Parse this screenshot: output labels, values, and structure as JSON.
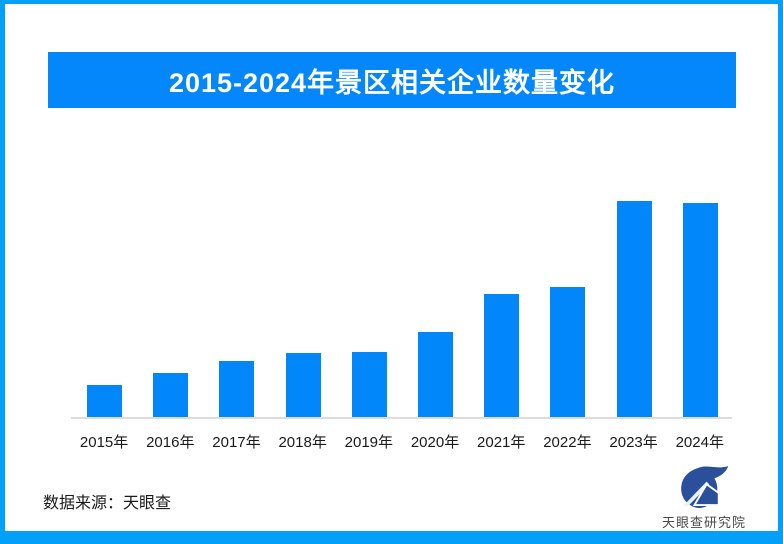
{
  "theme": {
    "page_bg": "#FFFFFF",
    "border_blue": "#02A0F8",
    "banner_blue": "#0387FA",
    "bar_blue": "#0287FB",
    "axis_gray": "#DCDCDC",
    "text_dark": "#1A1A1A",
    "logo_navy": "#2A4F9B",
    "brand_gray": "#4A4A4A"
  },
  "header": {
    "title": "2015-2024年景区相关企业数量变化"
  },
  "chart_data": {
    "type": "bar",
    "title": "2015-2024年景区相关企业数量变化",
    "categories": [
      "2015年",
      "2016年",
      "2017年",
      "2018年",
      "2019年",
      "2020年",
      "2021年",
      "2022年",
      "2023年",
      "2024年"
    ],
    "values": [
      32,
      44,
      56,
      64,
      65,
      85,
      123,
      130,
      216,
      214
    ],
    "value_note": "no y-axis or data labels shown in chart; values are relative bar heights (px), 2023 is the maximum",
    "xlabel": "",
    "ylabel": "",
    "ylim": [
      0,
      216
    ],
    "grid": false,
    "legend": false,
    "bar_color": "#0287FB",
    "axis_line_color": "#DCDCDC"
  },
  "footer": {
    "source_text": "数据来源：天眼查",
    "logo": {
      "icon": "tianyancha-eye-house-logo",
      "brand_text": "天眼查研究院",
      "color": "#2A4F9B"
    }
  }
}
